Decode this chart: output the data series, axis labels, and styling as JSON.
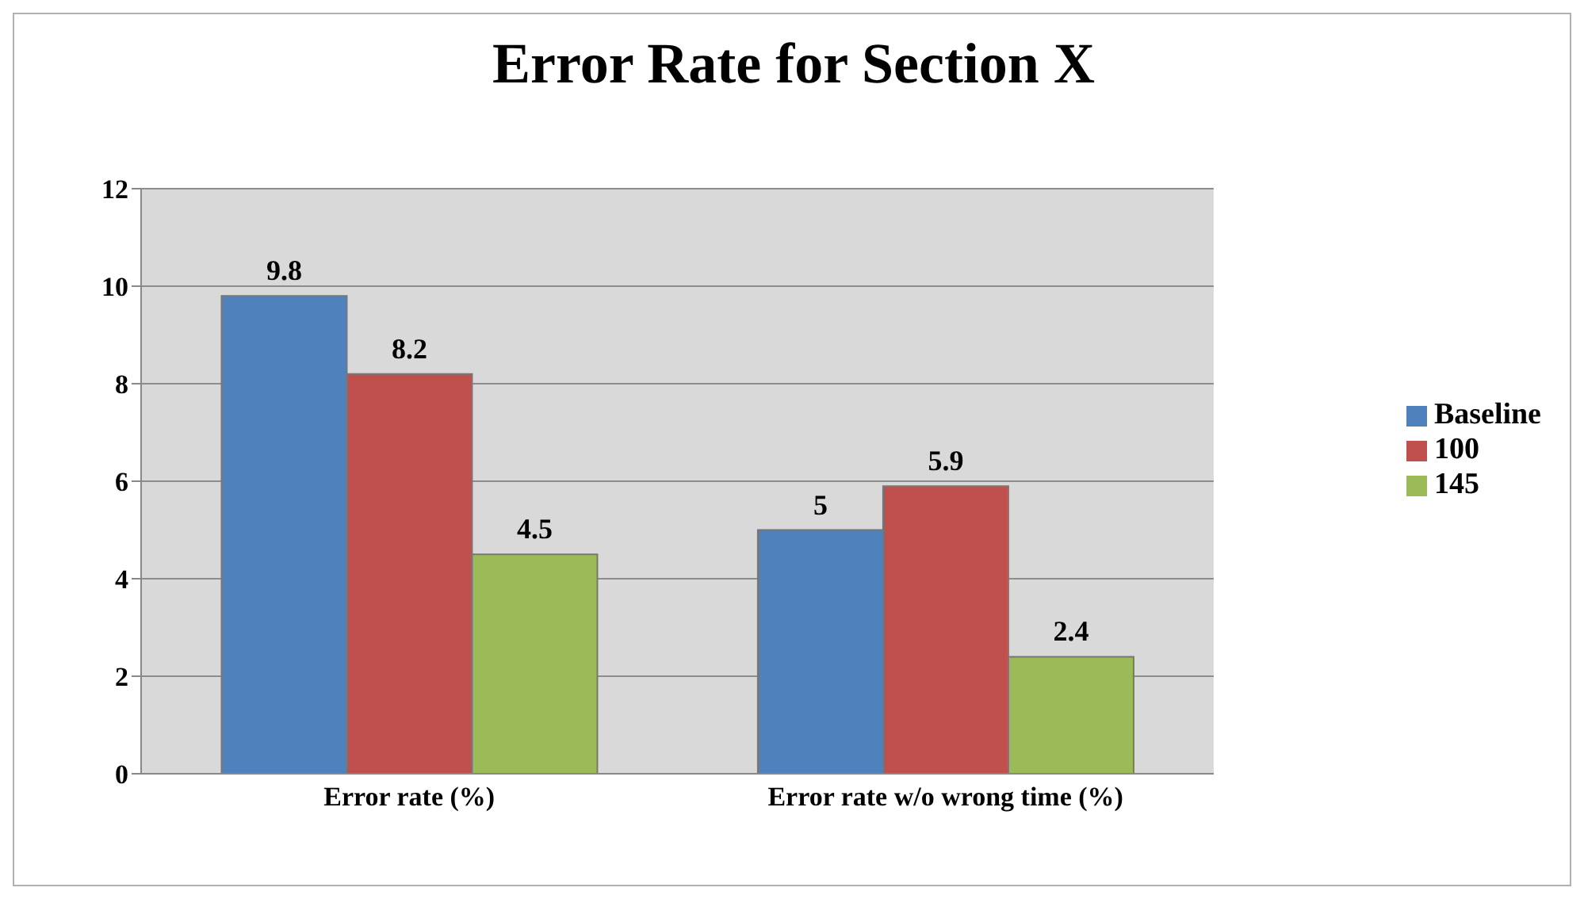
{
  "chart_data": {
    "type": "bar",
    "title": "Error Rate for Section X",
    "categories": [
      "Error rate (%)",
      "Error rate w/o wrong time (%)"
    ],
    "series": [
      {
        "name": "Baseline",
        "color": "#4f81bd",
        "values": [
          9.8,
          5
        ]
      },
      {
        "name": "100",
        "color": "#c0504d",
        "values": [
          8.2,
          5.9
        ]
      },
      {
        "name": "145",
        "color": "#9bbb59",
        "values": [
          4.5,
          2.4
        ]
      }
    ],
    "ylim": [
      0,
      12
    ],
    "yticks": [
      0,
      2,
      4,
      6,
      8,
      10,
      12
    ],
    "grid": "y",
    "legend": "right",
    "data_labels": true
  }
}
